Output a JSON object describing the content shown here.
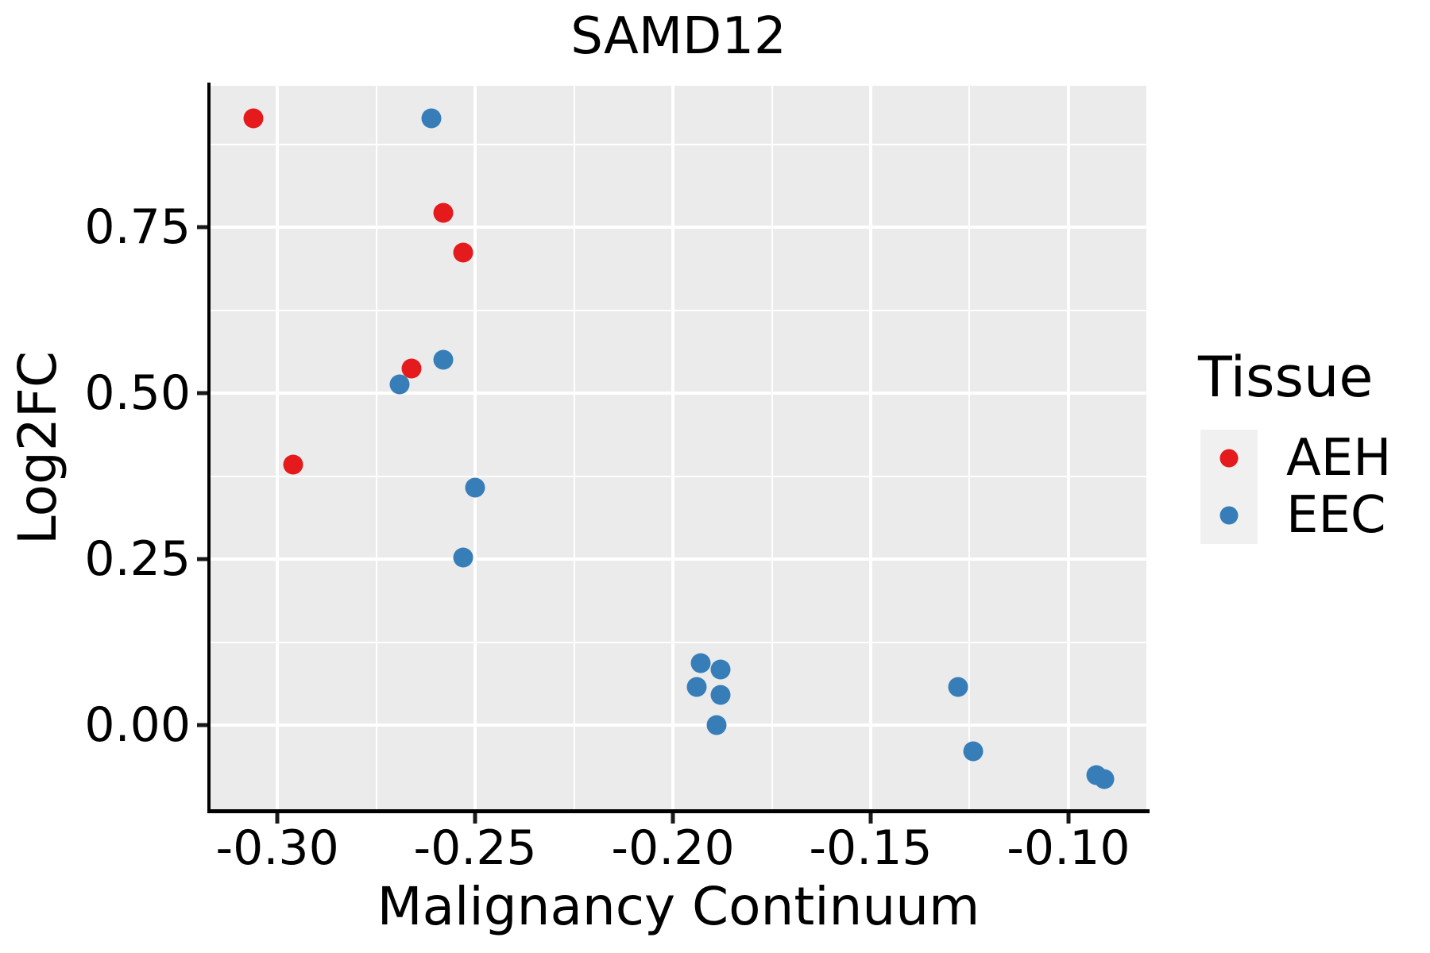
{
  "title": "SAMD12",
  "x_axis": {
    "title": "Malignancy Continuum",
    "min": -0.3169,
    "max": -0.0803,
    "tick_values": [
      -0.3,
      -0.25,
      -0.2,
      -0.15,
      -0.1
    ],
    "tick_labels": [
      "-0.30",
      "-0.25",
      "-0.20",
      "-0.15",
      "-0.10"
    ],
    "minor_values": [
      -0.275,
      -0.225,
      -0.175,
      -0.125
    ]
  },
  "y_axis": {
    "title": "Log2FC",
    "min": -0.128,
    "max": 0.963,
    "tick_values": [
      0.0,
      0.25,
      0.5,
      0.75
    ],
    "tick_labels": [
      "0.00",
      "0.25",
      "0.50",
      "0.75"
    ],
    "minor_values": [
      0.125,
      0.375,
      0.625,
      0.875
    ]
  },
  "legend": {
    "title": "Tissue",
    "entries": [
      {
        "label": "AEH",
        "color": "#e41a1c"
      },
      {
        "label": "EEC",
        "color": "#377eb8"
      }
    ]
  },
  "chart_data": {
    "type": "scatter",
    "title": "SAMD12",
    "xlabel": "Malignancy Continuum",
    "ylabel": "Log2FC",
    "xlim": [
      -0.3169,
      -0.0803
    ],
    "ylim": [
      -0.128,
      0.963
    ],
    "grid": true,
    "legend_title": "Tissue",
    "legend_position": "right",
    "series": [
      {
        "name": "AEH",
        "color": "#e41a1c",
        "points": [
          [
            -0.306,
            0.914
          ],
          [
            -0.296,
            0.392
          ],
          [
            -0.266,
            0.537
          ],
          [
            -0.258,
            0.772
          ],
          [
            -0.253,
            0.712
          ]
        ]
      },
      {
        "name": "EEC",
        "color": "#377eb8",
        "points": [
          [
            -0.261,
            0.914
          ],
          [
            -0.269,
            0.513
          ],
          [
            -0.258,
            0.55
          ],
          [
            -0.253,
            0.252
          ],
          [
            -0.25,
            0.358
          ],
          [
            -0.194,
            0.057
          ],
          [
            -0.193,
            0.093
          ],
          [
            -0.189,
            0.0
          ],
          [
            -0.188,
            0.084
          ],
          [
            -0.188,
            0.045
          ],
          [
            -0.128,
            0.057
          ],
          [
            -0.124,
            -0.039
          ],
          [
            -0.093,
            -0.075
          ],
          [
            -0.091,
            -0.081
          ]
        ]
      }
    ]
  },
  "colors": {
    "panel_background": "#ebebeb",
    "gridline": "#ffffff",
    "axis_line": "#000000",
    "text": "#000000",
    "legend_key_background": "#f0f0f0",
    "aeh": "#e41a1c",
    "eec": "#377eb8"
  }
}
